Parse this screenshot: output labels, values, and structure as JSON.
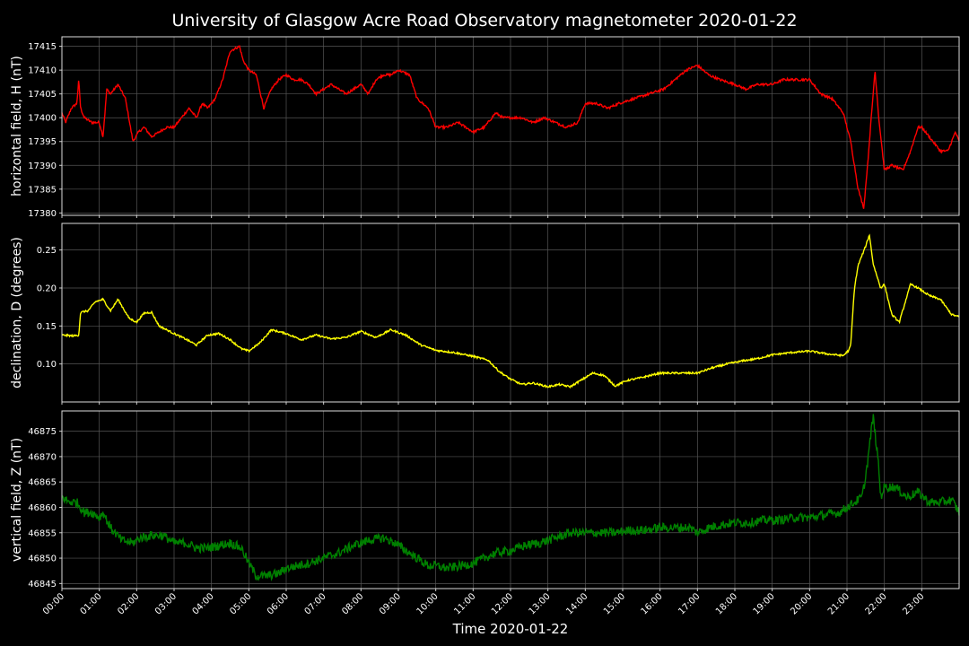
{
  "chart_data": {
    "type": "line",
    "title": "University of Glasgow Acre Road Observatory magnetometer 2020-01-22",
    "xlabel": "Time 2020-01-22",
    "x_ticks": [
      "00:00",
      "01:00",
      "02:00",
      "03:00",
      "04:00",
      "05:00",
      "06:00",
      "07:00",
      "08:00",
      "09:00",
      "10:00",
      "11:00",
      "12:00",
      "13:00",
      "14:00",
      "15:00",
      "16:00",
      "17:00",
      "18:00",
      "19:00",
      "20:00",
      "21:00",
      "22:00",
      "23:00"
    ],
    "xlim": [
      0,
      24
    ],
    "grid": true,
    "panels": [
      {
        "id": "h",
        "ylabel": "horizontal field, H (nT)",
        "color": "#ff0000",
        "ylim": [
          17379.5,
          17417
        ],
        "yticks": [
          17380,
          17385,
          17390,
          17395,
          17400,
          17405,
          17410,
          17415
        ],
        "ytick_labels": [
          "17380",
          "17385",
          "17390",
          "17395",
          "17400",
          "17405",
          "17410",
          "17415"
        ],
        "noise": 0.25,
        "x": [
          0,
          0.1,
          0.25,
          0.4,
          0.45,
          0.5,
          0.6,
          0.8,
          1.0,
          1.1,
          1.2,
          1.3,
          1.5,
          1.7,
          1.9,
          2.05,
          2.2,
          2.4,
          2.6,
          2.8,
          3.0,
          3.2,
          3.4,
          3.6,
          3.75,
          3.9,
          4.1,
          4.3,
          4.5,
          4.75,
          4.85,
          5.0,
          5.2,
          5.4,
          5.6,
          5.8,
          6.0,
          6.2,
          6.4,
          6.6,
          6.8,
          7.0,
          7.2,
          7.4,
          7.6,
          7.8,
          8.0,
          8.2,
          8.4,
          8.6,
          8.8,
          9.0,
          9.3,
          9.5,
          9.8,
          10.0,
          10.3,
          10.6,
          11.0,
          11.3,
          11.6,
          11.8,
          12.0,
          12.3,
          12.6,
          12.9,
          13.2,
          13.5,
          13.8,
          14.0,
          14.3,
          14.6,
          14.9,
          15.3,
          15.7,
          16.1,
          16.4,
          16.7,
          17.0,
          17.3,
          17.6,
          18.0,
          18.3,
          18.6,
          19.0,
          19.3,
          19.6,
          20.0,
          20.3,
          20.6,
          20.9,
          21.1,
          21.3,
          21.45,
          21.55,
          21.75,
          21.85,
          22.0,
          22.2,
          22.5,
          22.7,
          22.9,
          23.0,
          23.2,
          23.5,
          23.7,
          23.9,
          24.0
        ],
        "y": [
          17401,
          17399,
          17402,
          17403,
          17408,
          17402,
          17400,
          17399,
          17399,
          17396,
          17406,
          17405,
          17407,
          17404,
          17395,
          17397,
          17398,
          17396,
          17397,
          17398,
          17398,
          17400,
          17402,
          17400,
          17403,
          17402,
          17404,
          17408,
          17414,
          17415,
          17412,
          17410,
          17409,
          17402,
          17406,
          17408,
          17409,
          17408,
          17408,
          17407,
          17405,
          17406,
          17407,
          17406,
          17405,
          17406,
          17407,
          17405,
          17408,
          17409,
          17409,
          17410,
          17409,
          17404,
          17402,
          17398,
          17398,
          17399,
          17397,
          17398,
          17401,
          17400,
          17400,
          17400,
          17399,
          17400,
          17399,
          17398,
          17399,
          17403,
          17403,
          17402,
          17403,
          17404,
          17405,
          17406,
          17408,
          17410,
          17411,
          17409,
          17408,
          17407,
          17406,
          17407,
          17407,
          17408,
          17408,
          17408,
          17405,
          17404,
          17401,
          17395,
          17385,
          17381,
          17390,
          17410,
          17400,
          17389,
          17390,
          17389,
          17393,
          17398,
          17398,
          17396,
          17393,
          17393,
          17397,
          17395
        ]
      },
      {
        "id": "d",
        "ylabel": "declination, D (degrees)",
        "color": "#ffff00",
        "ylim": [
          0.05,
          0.285
        ],
        "yticks": [
          0.1,
          0.15,
          0.2,
          0.25
        ],
        "ytick_labels": [
          "0.10",
          "0.15",
          "0.20",
          "0.25"
        ],
        "noise": 0.0012,
        "x": [
          0,
          0.3,
          0.45,
          0.5,
          0.7,
          0.9,
          1.1,
          1.3,
          1.5,
          1.8,
          2.0,
          2.2,
          2.4,
          2.6,
          2.8,
          3.0,
          3.3,
          3.6,
          3.9,
          4.2,
          4.5,
          4.8,
          5.0,
          5.3,
          5.6,
          6.0,
          6.4,
          6.8,
          7.2,
          7.6,
          8.0,
          8.4,
          8.8,
          9.2,
          9.6,
          10.0,
          10.5,
          11.0,
          11.4,
          11.7,
          12.0,
          12.3,
          12.6,
          13.0,
          13.3,
          13.6,
          14.0,
          14.2,
          14.5,
          14.8,
          15.1,
          15.5,
          16.0,
          16.5,
          17.0,
          17.4,
          17.8,
          18.2,
          18.6,
          19.0,
          19.5,
          20.0,
          20.5,
          20.9,
          21.05,
          21.1,
          21.2,
          21.3,
          21.5,
          21.6,
          21.7,
          21.9,
          22.0,
          22.2,
          22.4,
          22.7,
          22.9,
          23.2,
          23.5,
          23.8,
          24.0
        ],
        "y": [
          0.138,
          0.137,
          0.138,
          0.168,
          0.17,
          0.182,
          0.185,
          0.17,
          0.185,
          0.16,
          0.155,
          0.167,
          0.168,
          0.15,
          0.145,
          0.14,
          0.133,
          0.125,
          0.138,
          0.14,
          0.132,
          0.12,
          0.117,
          0.128,
          0.145,
          0.14,
          0.132,
          0.138,
          0.133,
          0.135,
          0.143,
          0.135,
          0.145,
          0.138,
          0.125,
          0.118,
          0.115,
          0.11,
          0.105,
          0.09,
          0.08,
          0.073,
          0.075,
          0.07,
          0.073,
          0.07,
          0.082,
          0.088,
          0.085,
          0.071,
          0.078,
          0.082,
          0.088,
          0.088,
          0.088,
          0.095,
          0.1,
          0.104,
          0.107,
          0.112,
          0.115,
          0.117,
          0.113,
          0.111,
          0.118,
          0.125,
          0.2,
          0.23,
          0.255,
          0.27,
          0.232,
          0.2,
          0.205,
          0.165,
          0.155,
          0.205,
          0.2,
          0.19,
          0.185,
          0.165,
          0.162
        ],
        "extra": [
          [
            0.168,
            0.168
          ]
        ]
      },
      {
        "id": "z",
        "ylabel": "vertical field, Z (nT)",
        "color": "#008000",
        "ylim": [
          46844,
          46879
        ],
        "yticks": [
          46845,
          46850,
          46855,
          46860,
          46865,
          46870,
          46875
        ],
        "ytick_labels": [
          "46845",
          "46850",
          "46855",
          "46860",
          "46865",
          "46870",
          "46875"
        ],
        "noise": 0.9,
        "x": [
          0,
          0.2,
          0.4,
          0.6,
          0.8,
          1.0,
          1.1,
          1.3,
          1.6,
          1.9,
          2.1,
          2.4,
          2.7,
          3.0,
          3.3,
          3.6,
          3.9,
          4.2,
          4.5,
          4.8,
          5.0,
          5.2,
          5.5,
          5.8,
          6.0,
          6.3,
          6.6,
          7.0,
          7.4,
          7.8,
          8.2,
          8.6,
          8.9,
          9.2,
          9.5,
          9.8,
          10.0,
          10.3,
          10.7,
          11.0,
          11.3,
          11.6,
          12.0,
          12.4,
          12.8,
          13.2,
          13.6,
          14.0,
          14.4,
          14.8,
          15.2,
          15.6,
          16.0,
          16.4,
          16.8,
          17.0,
          17.3,
          17.6,
          18.0,
          18.4,
          18.8,
          19.2,
          19.6,
          20.0,
          20.4,
          20.8,
          21.0,
          21.2,
          21.4,
          21.5,
          21.6,
          21.7,
          21.85,
          21.9,
          22.0,
          22.3,
          22.6,
          22.9,
          23.2,
          23.5,
          23.8,
          24.0
        ],
        "y": [
          46862,
          46861,
          46861,
          46859,
          46859,
          46858,
          46859,
          46856,
          46853.5,
          46853,
          46854,
          46854.5,
          46854.5,
          46853,
          46853,
          46852,
          46852,
          46852.5,
          46853,
          46852,
          46849,
          46846.5,
          46846.5,
          46847,
          46848,
          46848.5,
          46849,
          46850,
          46851,
          46852.5,
          46853.5,
          46854,
          46853,
          46851.5,
          46850,
          46848.5,
          46848.5,
          46848,
          46848.5,
          46849,
          46850,
          46851,
          46851.5,
          46852.5,
          46853,
          46854,
          46855,
          46855,
          46855,
          46855,
          46855.5,
          46855.5,
          46856,
          46856,
          46856,
          46855,
          46856,
          46856.5,
          46857,
          46857,
          46857.5,
          46857.5,
          46858,
          46858,
          46858.5,
          46859,
          46860,
          46861,
          46862,
          46866,
          46872,
          46878,
          46868,
          46862,
          46864,
          46864,
          46862,
          46863,
          46861,
          46861,
          46861.5,
          46859
        ]
      }
    ]
  }
}
